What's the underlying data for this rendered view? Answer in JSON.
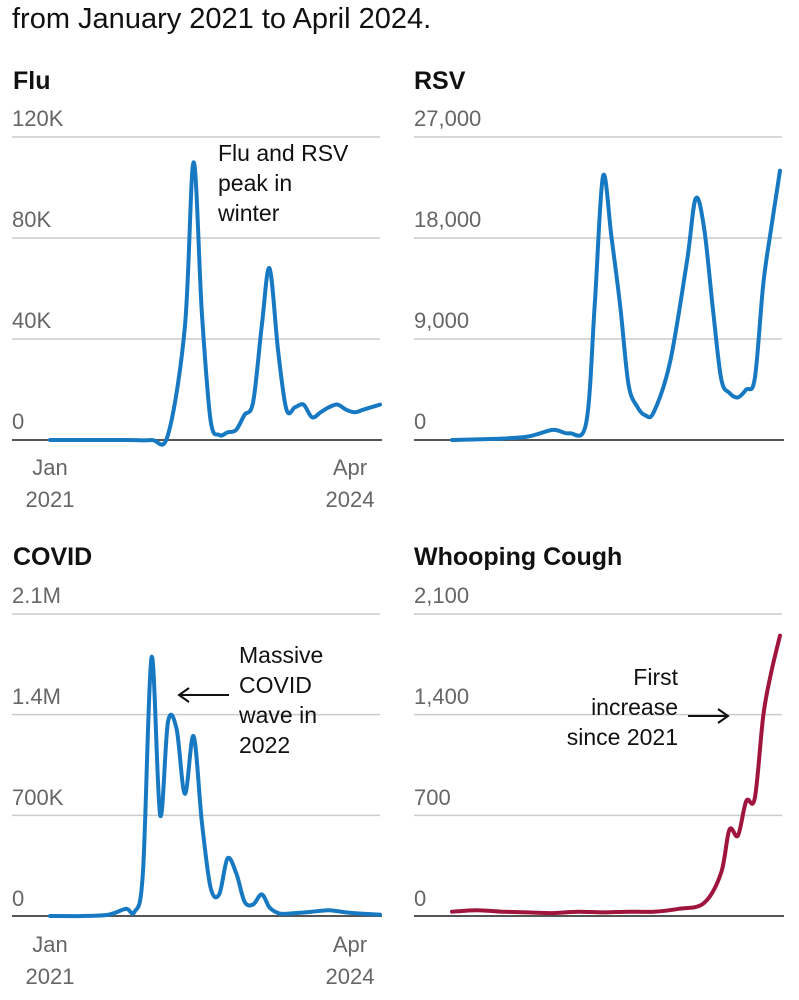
{
  "subtitle": "from January 2021 to April 2024.",
  "colors": {
    "blue": "#1879c3",
    "crimson": "#a0153e",
    "grid": "#cccccc",
    "axis": "#555555",
    "tick_text": "#666666"
  },
  "x_axis": {
    "start_label": "Jan\n2021",
    "end_label": "Apr\n2024"
  },
  "chart_data": [
    {
      "type": "line",
      "title": "Flu",
      "color": "#1879c3",
      "y_ticks": [
        "0",
        "40K",
        "80K",
        "120K"
      ],
      "ylim": [
        0,
        120000
      ],
      "annotation": "Flu and RSV\npeak in\nwinter",
      "x": [
        "2021-01",
        "2021-04",
        "2021-07",
        "2021-10",
        "2022-01",
        "2022-03",
        "2022-05",
        "2022-06",
        "2022-07",
        "2022-08",
        "2022-09",
        "2022-10",
        "2022-11",
        "2022-12",
        "2023-01",
        "2023-02",
        "2023-03",
        "2023-04",
        "2023-05",
        "2023-06",
        "2023-07",
        "2023-08",
        "2023-09",
        "2023-10",
        "2023-11",
        "2023-12",
        "2024-01",
        "2024-02",
        "2024-03",
        "2024-04"
      ],
      "series": [
        {
          "values": [
            0,
            0,
            0,
            0,
            0,
            2000,
            45000,
            110000,
            50000,
            8000,
            2000,
            3000,
            4000,
            10000,
            15000,
            45000,
            68000,
            35000,
            12000,
            13000,
            14000,
            9000,
            11000,
            13000,
            14000,
            12000,
            11000,
            12000,
            13000,
            14000
          ]
        }
      ]
    },
    {
      "type": "line",
      "title": "RSV",
      "color": "#1879c3",
      "y_ticks": [
        "0",
        "9,000",
        "18,000",
        "27,000"
      ],
      "ylim": [
        0,
        27000
      ],
      "annotation": "",
      "x": [
        "2021-01",
        "2021-06",
        "2021-10",
        "2022-01",
        "2022-03",
        "2022-05",
        "2022-06",
        "2022-07",
        "2022-08",
        "2022-09",
        "2022-10",
        "2022-11",
        "2022-12",
        "2023-01",
        "2023-03",
        "2023-05",
        "2023-06",
        "2023-07",
        "2023-08",
        "2023-09",
        "2023-10",
        "2023-11",
        "2023-12",
        "2024-01",
        "2024-02",
        "2024-03",
        "2024-04"
      ],
      "series": [
        {
          "values": [
            0,
            100,
            300,
            900,
            600,
            1500,
            12000,
            23500,
            18000,
            12000,
            5000,
            3000,
            2200,
            2500,
            7000,
            16000,
            21500,
            19000,
            12000,
            5500,
            4200,
            3800,
            4500,
            5500,
            14000,
            19000,
            24000
          ]
        }
      ]
    },
    {
      "type": "line",
      "title": "COVID",
      "color": "#1879c3",
      "y_ticks": [
        "0",
        "700K",
        "1.4M",
        "2.1M"
      ],
      "ylim": [
        0,
        2100000
      ],
      "annotation": "Massive\nCOVID\nwave in\n2022",
      "x": [
        "2021-01",
        "2021-05",
        "2021-08",
        "2021-10",
        "2021-11",
        "2021-12",
        "2022-01",
        "2022-02",
        "2022-03",
        "2022-04",
        "2022-05",
        "2022-06",
        "2022-07",
        "2022-08",
        "2022-09",
        "2022-10",
        "2022-11",
        "2022-12",
        "2023-01",
        "2023-02",
        "2023-03",
        "2023-04",
        "2023-05",
        "2023-06",
        "2023-08",
        "2023-10",
        "2023-12",
        "2024-02",
        "2024-04"
      ],
      "series": [
        {
          "values": [
            0,
            0,
            10000,
            50000,
            30000,
            300000,
            1800000,
            700000,
            1350000,
            1300000,
            850000,
            1250000,
            650000,
            200000,
            150000,
            400000,
            300000,
            100000,
            80000,
            150000,
            60000,
            20000,
            15000,
            20000,
            30000,
            40000,
            25000,
            15000,
            10000
          ]
        }
      ]
    },
    {
      "type": "line",
      "title": "Whooping Cough",
      "color": "#a0153e",
      "y_ticks": [
        "0",
        "700",
        "1,400",
        "2,100"
      ],
      "ylim": [
        0,
        2100
      ],
      "annotation": "First\nincrease\nsince 2021",
      "x": [
        "2021-01",
        "2021-04",
        "2021-07",
        "2021-10",
        "2022-01",
        "2022-04",
        "2022-07",
        "2022-10",
        "2023-01",
        "2023-04",
        "2023-07",
        "2023-09",
        "2023-10",
        "2023-11",
        "2023-12",
        "2024-01",
        "2024-02",
        "2024-03",
        "2024-04"
      ],
      "series": [
        {
          "values": [
            30,
            40,
            30,
            25,
            20,
            30,
            25,
            30,
            30,
            50,
            90,
            300,
            600,
            560,
            800,
            820,
            1400,
            1700,
            1950
          ]
        }
      ]
    }
  ]
}
